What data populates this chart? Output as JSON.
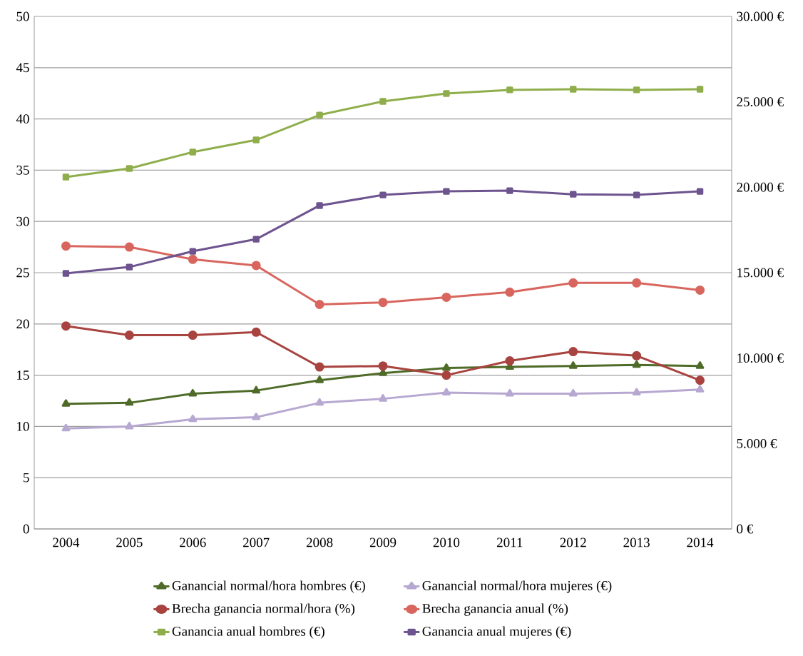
{
  "chart_data": {
    "type": "line",
    "categories": [
      "2004",
      "2005",
      "2006",
      "2007",
      "2008",
      "2009",
      "2010",
      "2011",
      "2012",
      "2013",
      "2014"
    ],
    "ylim": [
      0,
      50
    ],
    "yticks": [
      0,
      5,
      10,
      15,
      20,
      25,
      30,
      35,
      40,
      45,
      50
    ],
    "y2lim": [
      0,
      30000
    ],
    "y2ticks": [
      {
        "value": 0,
        "label": "0 €"
      },
      {
        "value": 5000,
        "label": "5.000 €"
      },
      {
        "value": 10000,
        "label": "10.000 €"
      },
      {
        "value": 15000,
        "label": "15.000 €"
      },
      {
        "value": 20000,
        "label": "20.000 €"
      },
      {
        "value": 25000,
        "label": "25.000 €"
      },
      {
        "value": 30000,
        "label": "30.000 €"
      }
    ],
    "grid": "y",
    "legend": "bottom",
    "line_style": "solid",
    "series": [
      {
        "name": "Ganancial normal/hora hombres (€)",
        "color": "#4f6b28",
        "marker": "triangle",
        "axis": "y",
        "values": [
          12.2,
          12.3,
          13.2,
          13.5,
          14.5,
          15.2,
          15.7,
          15.8,
          15.9,
          16.0,
          15.9
        ]
      },
      {
        "name": "Ganancial normal/hora mujeres (€)",
        "color": "#b7a8d1",
        "marker": "triangle",
        "axis": "y",
        "values": [
          9.8,
          10.0,
          10.7,
          10.9,
          12.3,
          12.7,
          13.3,
          13.2,
          13.2,
          13.3,
          13.6
        ]
      },
      {
        "name": "Brecha ganancia normal/hora (%)",
        "color": "#a8433f",
        "marker": "circle",
        "axis": "y",
        "values": [
          19.8,
          18.9,
          18.9,
          19.2,
          15.8,
          15.9,
          15.0,
          16.4,
          17.3,
          16.9,
          14.5
        ]
      },
      {
        "name": "Brecha ganancia anual (%)",
        "color": "#d8665e",
        "marker": "circle",
        "axis": "y",
        "values": [
          27.6,
          27.5,
          26.3,
          25.7,
          21.9,
          22.1,
          22.6,
          23.1,
          24.0,
          24.0,
          23.3
        ]
      },
      {
        "name": "Ganancia anual hombres (€)",
        "color": "#8fae4b",
        "marker": "square",
        "axis": "y2",
        "values": [
          20600,
          21100,
          22060,
          22770,
          24230,
          25030,
          25490,
          25700,
          25740,
          25700,
          25740
        ]
      },
      {
        "name": "Ganancia anual mujeres (€)",
        "color": "#6e548f",
        "marker": "square",
        "axis": "y2",
        "values": [
          14960,
          15330,
          16250,
          16960,
          18930,
          19550,
          19760,
          19800,
          19590,
          19550,
          19760
        ]
      }
    ]
  }
}
